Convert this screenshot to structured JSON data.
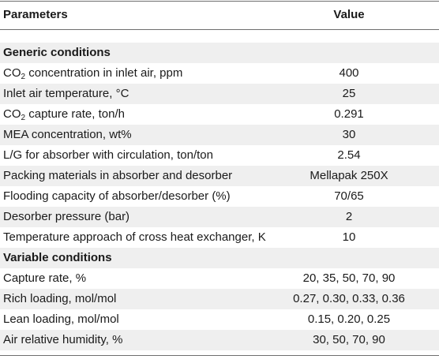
{
  "header": {
    "parameter_label": "Parameters",
    "value_label": "Value"
  },
  "sections": [
    {
      "title": "Generic conditions",
      "rows": [
        {
          "parameter": [
            "CO",
            "2",
            " concentration in inlet air, ppm"
          ],
          "value": "400"
        },
        {
          "parameter": [
            "Inlet air temperature, °C"
          ],
          "value": "25"
        },
        {
          "parameter": [
            "CO",
            "2",
            " capture rate, ton/h"
          ],
          "value": "0.291"
        },
        {
          "parameter": [
            "MEA concentration, wt%"
          ],
          "value": "30"
        },
        {
          "parameter": [
            "L/G for absorber with circulation, ton/ton"
          ],
          "value": "2.54"
        },
        {
          "parameter": [
            "Packing materials in absorber and desorber"
          ],
          "value": "Mellapak 250X"
        },
        {
          "parameter": [
            "Flooding capacity of absorber/desorber (%)"
          ],
          "value": "70/65"
        },
        {
          "parameter": [
            "Desorber pressure (bar)"
          ],
          "value": "2"
        },
        {
          "parameter": [
            "Temperature approach of cross heat exchanger, K"
          ],
          "value": "10"
        }
      ]
    },
    {
      "title": "Variable conditions",
      "rows": [
        {
          "parameter": [
            "Capture rate, %"
          ],
          "value": "20, 35, 50, 70, 90"
        },
        {
          "parameter": [
            "Rich loading, mol/mol"
          ],
          "value": "0.27, 0.30, 0.33, 0.36"
        },
        {
          "parameter": [
            "Lean loading, mol/mol"
          ],
          "value": "0.15, 0.20, 0.25"
        },
        {
          "parameter": [
            "Air relative humidity, %"
          ],
          "value": "30, 50, 70, 90"
        }
      ]
    }
  ],
  "colors": {
    "band": "#efefef",
    "rule": "#6e6e6e",
    "text": "#1a1a1a"
  }
}
